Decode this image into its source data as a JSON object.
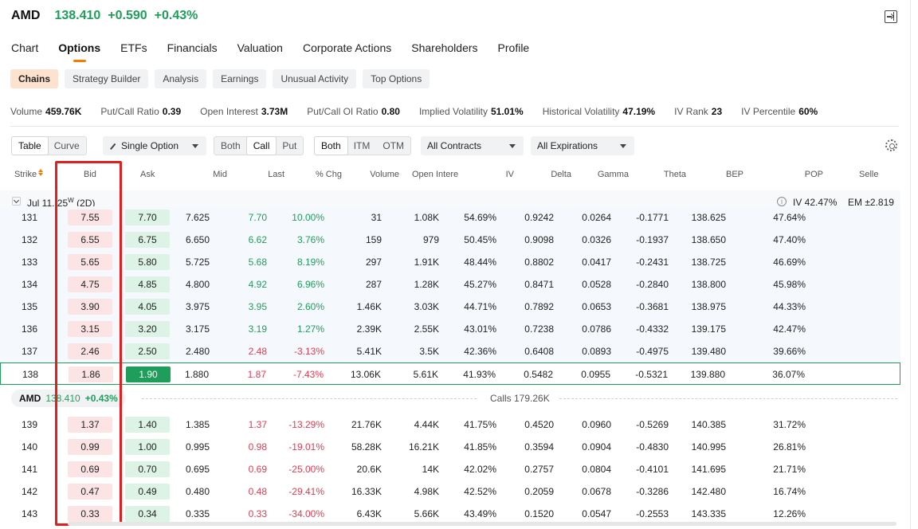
{
  "ticker": {
    "symbol": "AMD",
    "price": "138.410",
    "change": "+0.590",
    "change_pct": "+0.43%"
  },
  "main_tabs": [
    "Chart",
    "Options",
    "ETFs",
    "Financials",
    "Valuation",
    "Corporate Actions",
    "Shareholders",
    "Profile"
  ],
  "main_tab_active": "Options",
  "sub_tabs": [
    "Chains",
    "Strategy Builder",
    "Analysis",
    "Earnings",
    "Unusual Activity",
    "Top Options"
  ],
  "sub_tab_active": "Chains",
  "stats": [
    {
      "label": "Volume",
      "value": "459.76K"
    },
    {
      "label": "Put/Call Ratio",
      "value": "0.39"
    },
    {
      "label": "Open Interest",
      "value": "3.73M"
    },
    {
      "label": "Put/Call OI Ratio",
      "value": "0.80"
    },
    {
      "label": "Implied Volatility",
      "value": "51.01%"
    },
    {
      "label": "Historical Volatility",
      "value": "47.19%"
    },
    {
      "label": "IV Rank",
      "value": "23"
    },
    {
      "label": "IV Percentile",
      "value": "60%"
    }
  ],
  "toolbar": {
    "view": [
      "Table",
      "Curve"
    ],
    "strategy": "Single Option",
    "side": [
      "Both",
      "Call",
      "Put"
    ],
    "moneyness": [
      "Both",
      "ITM",
      "OTM"
    ],
    "contracts": "All Contracts",
    "expirations": "All Expirations"
  },
  "columns": [
    "Strike",
    "Bid",
    "Ask",
    "Mid",
    "Last",
    "% Chg",
    "Volume",
    "Open Intere",
    "IV",
    "Delta",
    "Gamma",
    "Theta",
    "BEP",
    "POP",
    "Selle"
  ],
  "expiry": {
    "label": "Jul 11, 25",
    "weekly": "W",
    "dte": "(2D)",
    "iv": "IV 42.47%",
    "em": "EM ±2.819"
  },
  "rows": [
    {
      "strike": "131",
      "bid": "7.55",
      "ask": "7.70",
      "mid": "7.625",
      "last": "7.70",
      "chg": "10.00%",
      "volume": "31",
      "oi": "1.08K",
      "iv": "54.69%",
      "delta": "0.9242",
      "gamma": "0.0264",
      "theta": "-0.1771",
      "bep": "138.625",
      "pop": "47.64%"
    },
    {
      "strike": "132",
      "bid": "6.55",
      "ask": "6.75",
      "mid": "6.650",
      "last": "6.62",
      "chg": "3.76%",
      "volume": "159",
      "oi": "979",
      "iv": "50.45%",
      "delta": "0.9098",
      "gamma": "0.0326",
      "theta": "-0.1937",
      "bep": "138.650",
      "pop": "47.40%"
    },
    {
      "strike": "133",
      "bid": "5.65",
      "ask": "5.80",
      "mid": "5.725",
      "last": "5.68",
      "chg": "8.19%",
      "volume": "297",
      "oi": "1.91K",
      "iv": "48.44%",
      "delta": "0.8802",
      "gamma": "0.0417",
      "theta": "-0.2431",
      "bep": "138.725",
      "pop": "46.69%"
    },
    {
      "strike": "134",
      "bid": "4.75",
      "ask": "4.85",
      "mid": "4.800",
      "last": "4.92",
      "chg": "6.96%",
      "volume": "287",
      "oi": "1.28K",
      "iv": "45.27%",
      "delta": "0.8471",
      "gamma": "0.0528",
      "theta": "-0.2840",
      "bep": "138.800",
      "pop": "45.98%"
    },
    {
      "strike": "135",
      "bid": "3.90",
      "ask": "4.05",
      "mid": "3.975",
      "last": "3.95",
      "chg": "2.60%",
      "volume": "1.46K",
      "oi": "3.03K",
      "iv": "44.71%",
      "delta": "0.7892",
      "gamma": "0.0653",
      "theta": "-0.3681",
      "bep": "138.975",
      "pop": "44.33%"
    },
    {
      "strike": "136",
      "bid": "3.15",
      "ask": "3.20",
      "mid": "3.175",
      "last": "3.19",
      "chg": "1.27%",
      "volume": "2.39K",
      "oi": "2.55K",
      "iv": "43.01%",
      "delta": "0.7238",
      "gamma": "0.0786",
      "theta": "-0.4332",
      "bep": "139.175",
      "pop": "42.47%"
    },
    {
      "strike": "137",
      "bid": "2.46",
      "ask": "2.50",
      "mid": "2.480",
      "last": "2.48",
      "chg": "-3.13%",
      "volume": "5.41K",
      "oi": "3.5K",
      "iv": "42.36%",
      "delta": "0.6408",
      "gamma": "0.0893",
      "theta": "-0.4975",
      "bep": "139.480",
      "pop": "39.66%"
    },
    {
      "strike": "138",
      "bid": "1.86",
      "ask": "1.90",
      "mid": "1.880",
      "last": "1.87",
      "chg": "-7.43%",
      "volume": "13.06K",
      "oi": "5.61K",
      "iv": "41.93%",
      "delta": "0.5482",
      "gamma": "0.0955",
      "theta": "-0.5321",
      "bep": "139.880",
      "pop": "36.07%"
    },
    {
      "strike": "139",
      "bid": "1.37",
      "ask": "1.40",
      "mid": "1.385",
      "last": "1.37",
      "chg": "-13.29%",
      "volume": "21.76K",
      "oi": "4.44K",
      "iv": "41.75%",
      "delta": "0.4520",
      "gamma": "0.0960",
      "theta": "-0.5269",
      "bep": "140.385",
      "pop": "31.72%"
    },
    {
      "strike": "140",
      "bid": "0.99",
      "ask": "1.00",
      "mid": "0.995",
      "last": "0.98",
      "chg": "-19.01%",
      "volume": "58.28K",
      "oi": "16.21K",
      "iv": "41.85%",
      "delta": "0.3594",
      "gamma": "0.0904",
      "theta": "-0.4830",
      "bep": "140.995",
      "pop": "26.81%"
    },
    {
      "strike": "141",
      "bid": "0.69",
      "ask": "0.70",
      "mid": "0.695",
      "last": "0.69",
      "chg": "-25.00%",
      "volume": "20.6K",
      "oi": "14K",
      "iv": "42.02%",
      "delta": "0.2757",
      "gamma": "0.0804",
      "theta": "-0.4101",
      "bep": "141.695",
      "pop": "21.71%"
    },
    {
      "strike": "142",
      "bid": "0.47",
      "ask": "0.49",
      "mid": "0.480",
      "last": "0.48",
      "chg": "-29.41%",
      "volume": "16.33K",
      "oi": "4.98K",
      "iv": "42.52%",
      "delta": "0.2059",
      "gamma": "0.0678",
      "theta": "-0.3286",
      "bep": "142.480",
      "pop": "16.74%"
    },
    {
      "strike": "143",
      "bid": "0.33",
      "ask": "0.34",
      "mid": "0.335",
      "last": "0.33",
      "chg": "-34.00%",
      "volume": "6.43K",
      "oi": "5.66K",
      "iv": "43.49%",
      "delta": "0.1520",
      "gamma": "0.0547",
      "theta": "-0.2553",
      "bep": "143.335",
      "pop": "12.26%"
    }
  ],
  "selected_strike": "138",
  "divider": {
    "symbol": "AMD",
    "price": "138.410",
    "change_pct": "+0.43%",
    "calls_label": "Calls 179.26K"
  },
  "colors": {
    "up": "#1e9e5a",
    "down": "#e53950",
    "accent": "#f57c00",
    "highlight": "#e02020"
  }
}
